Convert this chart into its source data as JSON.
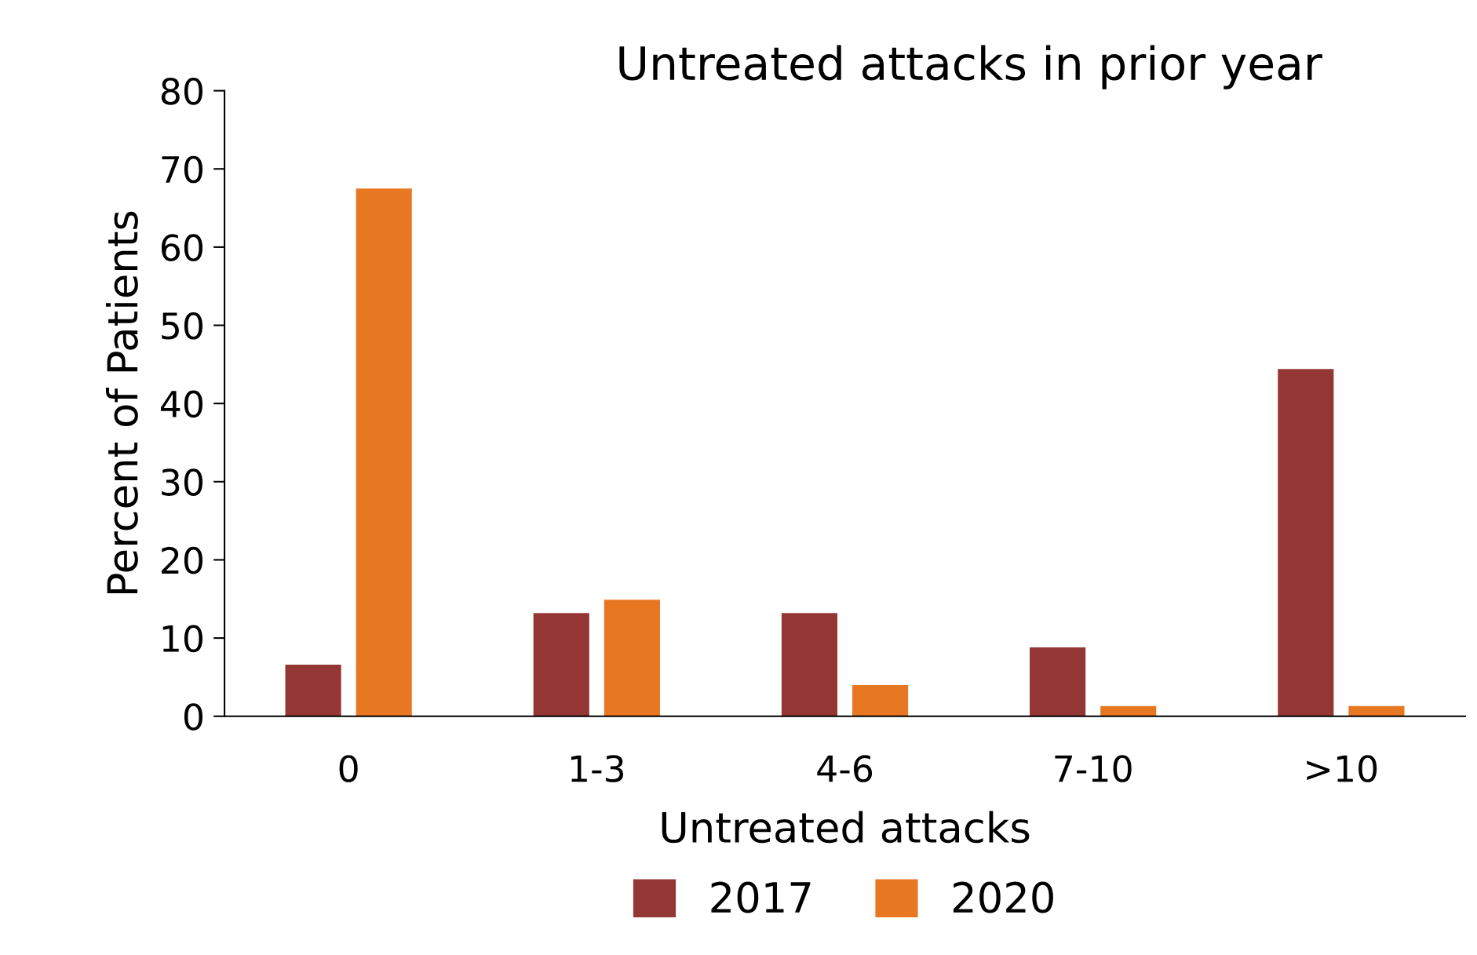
{
  "chart_data": {
    "type": "bar",
    "title": "Untreated attacks in prior year",
    "xlabel": "Untreated attacks",
    "ylabel": "Percent of Patients",
    "categories": [
      "0",
      "1-3",
      "4-6",
      "7-10",
      ">10"
    ],
    "series": [
      {
        "name": "2017",
        "color": "#943634",
        "values": [
          6.6,
          13.2,
          13.2,
          8.8,
          44.4
        ]
      },
      {
        "name": "2020",
        "color": "#e87722",
        "values": [
          67.5,
          14.9,
          4.0,
          1.3,
          1.3
        ]
      }
    ],
    "ylim": [
      0,
      80
    ],
    "yticks": [
      0,
      10,
      20,
      30,
      40,
      50,
      60,
      70,
      80
    ],
    "grid": false,
    "legend": "bottom"
  }
}
